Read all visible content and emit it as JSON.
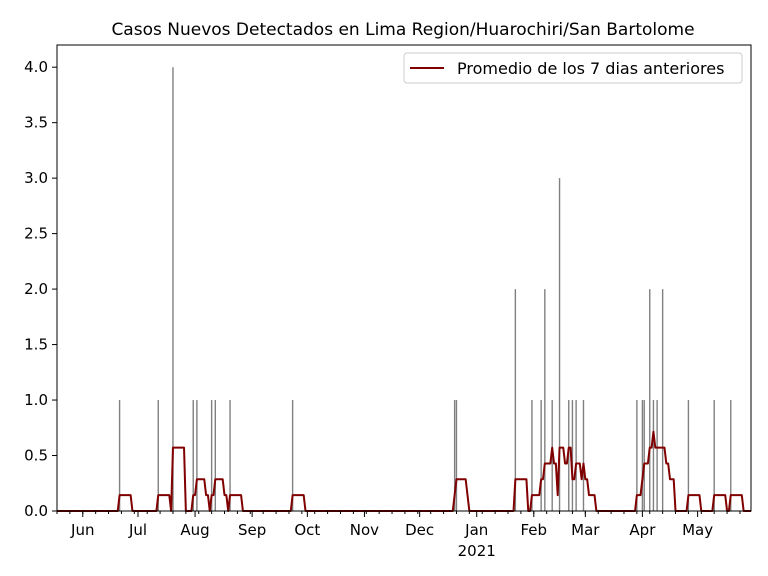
{
  "chart_data": {
    "type": "bar",
    "title": "Casos Nuevos Detectados en Lima Region/Huarochiri/San Bartolome",
    "xlabel": "",
    "ylabel": "",
    "x_start_date": "2020-05-18",
    "x_end_date": "2021-05-30",
    "ylim": [
      0,
      4.2
    ],
    "y_ticks": [
      "0.0",
      "0.5",
      "1.0",
      "1.5",
      "2.0",
      "2.5",
      "3.0",
      "3.5",
      "4.0"
    ],
    "x_ticks": [
      {
        "date": "2020-06-01",
        "label": "Jun"
      },
      {
        "date": "2020-07-01",
        "label": "Jul"
      },
      {
        "date": "2020-08-01",
        "label": "Aug"
      },
      {
        "date": "2020-09-01",
        "label": "Sep"
      },
      {
        "date": "2020-10-01",
        "label": "Oct"
      },
      {
        "date": "2020-11-01",
        "label": "Nov"
      },
      {
        "date": "2020-12-01",
        "label": "Dec"
      },
      {
        "date": "2021-01-01",
        "label": "Jan",
        "sublabel": "2021"
      },
      {
        "date": "2021-02-01",
        "label": "Feb"
      },
      {
        "date": "2021-03-01",
        "label": "Mar"
      },
      {
        "date": "2021-04-01",
        "label": "Apr"
      },
      {
        "date": "2021-05-01",
        "label": "May"
      }
    ],
    "legend": {
      "label": "Promedio de los 7 dias anteriores",
      "position": "upper right"
    },
    "colors": {
      "bars": "#808080",
      "avg_line": "#800000"
    },
    "series": [
      {
        "type": "bar",
        "points": [
          {
            "date": "2020-06-21",
            "value": 1
          },
          {
            "date": "2020-07-12",
            "value": 1
          },
          {
            "date": "2020-07-20",
            "value": 4
          },
          {
            "date": "2020-07-31",
            "value": 1
          },
          {
            "date": "2020-08-02",
            "value": 1
          },
          {
            "date": "2020-08-10",
            "value": 1
          },
          {
            "date": "2020-08-12",
            "value": 1
          },
          {
            "date": "2020-08-20",
            "value": 1
          },
          {
            "date": "2020-09-23",
            "value": 1
          },
          {
            "date": "2020-12-20",
            "value": 1
          },
          {
            "date": "2020-12-21",
            "value": 1
          },
          {
            "date": "2021-01-22",
            "value": 2
          },
          {
            "date": "2021-01-31",
            "value": 1
          },
          {
            "date": "2021-02-05",
            "value": 1
          },
          {
            "date": "2021-02-07",
            "value": 2
          },
          {
            "date": "2021-02-11",
            "value": 1
          },
          {
            "date": "2021-02-15",
            "value": 3
          },
          {
            "date": "2021-02-20",
            "value": 1
          },
          {
            "date": "2021-02-22",
            "value": 1
          },
          {
            "date": "2021-02-24",
            "value": 1
          },
          {
            "date": "2021-02-28",
            "value": 1
          },
          {
            "date": "2021-03-29",
            "value": 1
          },
          {
            "date": "2021-04-01",
            "value": 1
          },
          {
            "date": "2021-04-02",
            "value": 1
          },
          {
            "date": "2021-04-05",
            "value": 2
          },
          {
            "date": "2021-04-07",
            "value": 1
          },
          {
            "date": "2021-04-09",
            "value": 1
          },
          {
            "date": "2021-04-12",
            "value": 2
          },
          {
            "date": "2021-04-26",
            "value": 1
          },
          {
            "date": "2021-05-10",
            "value": 1
          },
          {
            "date": "2021-05-19",
            "value": 1
          }
        ]
      },
      {
        "type": "line",
        "name": "Promedio de los 7 dias anteriores",
        "rolling_window_days": 7
      }
    ]
  }
}
